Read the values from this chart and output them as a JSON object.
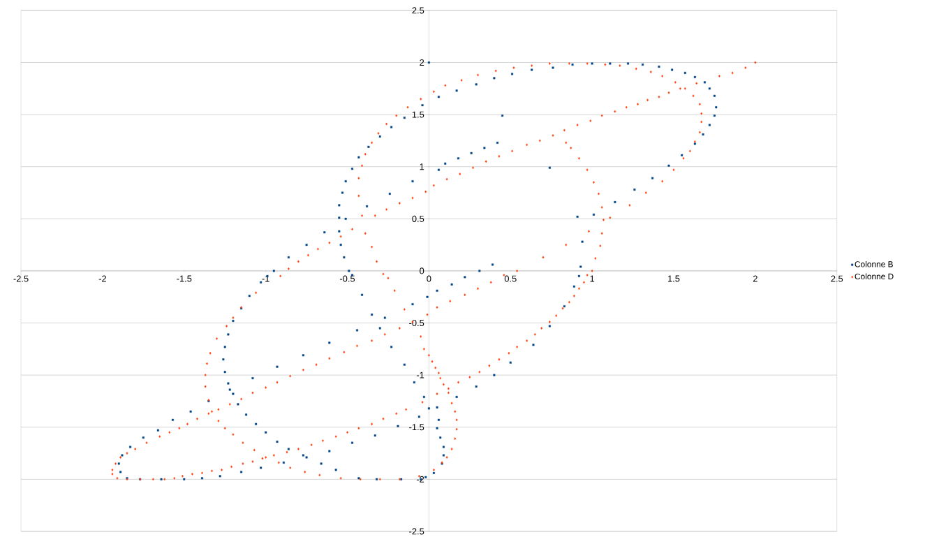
{
  "chart_data": {
    "type": "scatter",
    "xlim": [
      -2.5,
      2.5
    ],
    "ylim": [
      -2.5,
      2.5
    ],
    "xticks": [
      -2.5,
      -2,
      -1.5,
      -1,
      -0.5,
      0,
      0.5,
      1,
      1.5,
      2,
      2.5
    ],
    "yticks": [
      -2.5,
      -2,
      -1.5,
      -1,
      -0.5,
      0,
      0.5,
      1,
      1.5,
      2,
      2.5
    ],
    "grid": "y",
    "legend": "right",
    "series": [
      {
        "name": "Colonne B",
        "color": "#004586",
        "marker": "square",
        "x": [
          0,
          0.45,
          0.74,
          0.91,
          0.94,
          0.92,
          0.93,
          0.89,
          0.83,
          0.74,
          0.64,
          0.5,
          0.4,
          0.29,
          0.17,
          0.05,
          -0.06,
          -0.19,
          -0.33,
          -0.47,
          -0.61,
          -0.75,
          -0.89,
          -1.03,
          -1.15,
          -1.28,
          -1.39,
          -1.5,
          -1.64,
          -1.77,
          -1.85,
          -1.89,
          -1.9,
          -1.88,
          -1.83,
          -1.75,
          -1.66,
          -1.57,
          -1.46,
          -1.35,
          -1.22,
          -1.08,
          -0.93,
          -0.77,
          -0.61,
          -0.44,
          -0.27,
          -0.1,
          -0.01,
          0.05,
          0.14,
          0.22,
          0.31,
          0.39,
          1.01,
          1.14,
          1.26,
          1.37,
          1.47,
          1.55,
          1.63,
          1.68,
          1.72,
          1.75,
          1.76,
          1.75,
          1.72,
          1.69,
          1.63,
          1.57,
          1.49,
          1.41,
          1.31,
          1.22,
          1.11,
          1,
          0.88,
          0.76,
          0.63,
          0.51,
          0.4,
          0.29,
          0.17,
          0.06,
          -0.04,
          -0.15,
          -0.23,
          -0.3,
          -0.37,
          -0.43,
          -0.47,
          -0.51,
          -0.53,
          -0.55,
          -0.55,
          -0.55,
          -0.54,
          -0.52,
          -0.49,
          -0.47,
          -0.41,
          -0.35,
          -0.3,
          -0.23,
          -0.15,
          -0.09,
          -0.03,
          0,
          0.06,
          0.05,
          0.07,
          0.09,
          0.09,
          0.08,
          0.03,
          -0.02,
          -0.05,
          -0.17,
          -0.32,
          -0.43,
          -0.57,
          -0.66,
          -0.77,
          -0.86,
          -0.93,
          -1,
          -1.06,
          -1.12,
          -1.17,
          -1.2,
          -1.23,
          -1.25,
          -1.26,
          -1.25,
          -1.23,
          -1.2,
          -1.15,
          -1.1,
          -1.03,
          -0.99,
          -0.95,
          -0.86,
          -0.75,
          -0.64,
          -0.51,
          -0.38,
          -0.24,
          -0.1,
          0.06,
          0.1,
          0.18,
          0.26,
          0.34,
          0.42
        ],
        "values": [
          2,
          1.49,
          0.99,
          0.52,
          0.28,
          -0.05,
          0.04,
          -0.15,
          -0.34,
          -0.53,
          -0.71,
          -0.88,
          -1,
          -1.11,
          -1.21,
          -1.31,
          -1.4,
          -1.49,
          -1.58,
          -1.65,
          -1.73,
          -1.79,
          -1.84,
          -1.89,
          -1.93,
          -1.97,
          -1.99,
          -2,
          -2,
          -2,
          -1.99,
          -1.93,
          -1.85,
          -1.77,
          -1.69,
          -1.6,
          -1.53,
          -1.43,
          -1.35,
          -1.25,
          -1.14,
          -1.03,
          -0.92,
          -0.81,
          -0.69,
          -0.57,
          -0.45,
          -0.32,
          -0.25,
          -0.19,
          -0.13,
          -0.06,
          0,
          0.06,
          0.54,
          0.66,
          0.78,
          0.89,
          1.01,
          1.11,
          1.22,
          1.31,
          1.4,
          1.49,
          1.57,
          1.68,
          1.75,
          1.81,
          1.86,
          1.9,
          1.93,
          1.96,
          1.98,
          1.99,
          1.99,
          1.99,
          1.98,
          1.95,
          1.93,
          1.89,
          1.85,
          1.79,
          1.73,
          1.67,
          1.59,
          1.47,
          1.38,
          1.29,
          1.19,
          1.09,
          0.98,
          0.86,
          0.75,
          0.63,
          0.51,
          0.38,
          0.25,
          0.13,
          0,
          -0.04,
          -0.23,
          -0.42,
          -0.55,
          -0.73,
          -0.9,
          -1.07,
          -1.21,
          -1.32,
          -1.43,
          -1.51,
          -1.6,
          -1.69,
          -1.77,
          -1.85,
          -1.94,
          -1.98,
          -2,
          -2,
          -2,
          -1.99,
          -1.91,
          -1.85,
          -1.77,
          -1.71,
          -1.64,
          -1.55,
          -1.47,
          -1.38,
          -1.28,
          -1.18,
          -1.08,
          -0.97,
          -0.85,
          -0.73,
          -0.61,
          -0.48,
          -0.36,
          -0.24,
          -0.11,
          -0.05,
          0,
          0.13,
          0.25,
          0.37,
          0.5,
          0.62,
          0.74,
          0.86,
          0.97,
          1.03,
          1.08,
          1.13,
          1.18,
          1.23
        ]
      },
      {
        "name": "Colonne D",
        "color": "#ff420e",
        "marker": "diamond",
        "x": [
          2,
          1.94,
          1.86,
          1.78,
          1.64,
          1.54,
          1.47,
          1.41,
          1.34,
          1.28,
          1.21,
          1.14,
          1.06,
          0.99,
          0.91,
          0.83,
          0.76,
          0.68,
          0.6,
          0.51,
          0.43,
          0.35,
          0.27,
          0.19,
          0.11,
          0.03,
          -0.02,
          -0.1,
          -0.18,
          -0.26,
          -0.33,
          -0.47,
          -0.54,
          -0.61,
          -0.68,
          -0.74,
          -0.8,
          -0.86,
          -0.91,
          -1.06,
          -1.15,
          -1.2,
          -1.24,
          -1.3,
          -1.34,
          -1.36,
          -1.37,
          -1.37,
          -1.35,
          -1.33,
          -1.29,
          -1.25,
          -1.2,
          -1.14,
          -1.07,
          -1,
          -0.92,
          -0.85,
          -0.76,
          -0.67,
          -0.54,
          -0.42,
          -0.3,
          -0.18,
          -0.06,
          0.03,
          0.08,
          0.11,
          0.14,
          0.16,
          0.17,
          0.17,
          0.16,
          0.14,
          0.12,
          0.09,
          0.07,
          0.06,
          0.04,
          0.02,
          0,
          -0.03,
          -0.05,
          -0.1,
          -0.15,
          -0.21,
          -0.25,
          -0.28,
          -0.32,
          -0.35,
          -0.39,
          -0.41,
          -0.43,
          -0.43,
          -0.41,
          -0.39,
          -0.35,
          -0.31,
          -0.26,
          -0.2,
          -0.13,
          -0.05,
          0.03,
          0.1,
          0.2,
          0.3,
          0.41,
          0.52,
          0.63,
          0.74,
          0.86,
          0.97,
          1.08,
          1.17,
          1.27,
          1.36,
          1.43,
          1.51,
          1.57,
          1.62,
          1.66,
          1.67,
          1.67,
          1.66,
          1.63,
          1.6,
          1.56,
          1.5,
          1.43,
          1.33,
          1.23,
          1.11,
          0.98,
          0.84,
          0.7,
          0.54,
          0.84,
          0.87,
          0.92,
          0.97,
          1.01,
          1.04,
          1.06,
          1.07,
          1.06,
          1.05,
          1.02,
          1,
          0.97,
          0.95,
          0.92,
          0.89,
          0.86,
          0.82,
          0.78,
          0.74,
          0.69,
          0.65,
          0.6,
          0.54,
          0.49,
          0.43,
          0.37,
          0.31,
          0.25,
          0.18,
          0.12,
          0.05,
          -0.04,
          -0.14,
          -0.2,
          -0.28,
          -0.35,
          -0.43,
          -0.5,
          -0.57,
          -0.65,
          -0.72,
          -0.8,
          -0.87,
          -0.95,
          -1.02,
          -1.08,
          -1.14,
          -1.21,
          -1.27,
          -1.33,
          -1.39,
          -1.45,
          -1.51,
          -1.56,
          -1.62,
          -1.69,
          -1.77,
          -1.85,
          -1.91,
          -1.94,
          -1.94,
          -1.92,
          -1.89,
          -1.85,
          -1.8,
          -1.73,
          -1.65,
          -1.59,
          -1.53,
          -1.48,
          -1.42,
          -1.35,
          -1.29,
          -1.22,
          -1.15,
          -1.08,
          -1,
          -0.93,
          -0.85,
          -0.77,
          -0.69,
          -0.61,
          -0.52,
          -0.44,
          -0.35,
          -0.27,
          -0.18,
          -0.01,
          0.05,
          0.13,
          0.22,
          0.3,
          0.38,
          0.46
        ],
        "values": [
          2,
          1.95,
          1.9,
          1.87,
          1.8,
          1.75,
          1.71,
          1.67,
          1.64,
          1.6,
          1.57,
          1.53,
          1.49,
          1.44,
          1.4,
          1.35,
          1.3,
          1.25,
          1.21,
          1.15,
          1.1,
          1.05,
          0.99,
          0.93,
          0.88,
          0.82,
          0.76,
          0.7,
          0.65,
          0.59,
          0.53,
          0.4,
          0.33,
          0.27,
          0.21,
          0.15,
          0.09,
          0.02,
          -0.05,
          -0.21,
          -0.35,
          -0.45,
          -0.53,
          -0.65,
          -0.79,
          -0.89,
          -1,
          -1.11,
          -1.24,
          -1.35,
          -1.44,
          -1.51,
          -1.57,
          -1.65,
          -1.72,
          -1.79,
          -1.84,
          -1.89,
          -1.93,
          -1.96,
          -1.99,
          -2,
          -2,
          -2,
          -1.97,
          -1.91,
          -1.84,
          -1.79,
          -1.71,
          -1.61,
          -1.52,
          -1.43,
          -1.35,
          -1.27,
          -1.17,
          -1.09,
          -1.03,
          -0.98,
          -0.93,
          -0.87,
          -0.81,
          -0.75,
          -0.63,
          -0.49,
          -0.37,
          -0.19,
          -0.07,
          -0.03,
          0.09,
          0.23,
          0.36,
          0.53,
          0.72,
          0.89,
          1.01,
          1.12,
          1.23,
          1.32,
          1.41,
          1.49,
          1.57,
          1.65,
          1.72,
          1.78,
          1.83,
          1.88,
          1.92,
          1.95,
          1.97,
          1.99,
          1.99,
          1.99,
          1.98,
          1.97,
          1.94,
          1.91,
          1.87,
          1.81,
          1.75,
          1.68,
          1.6,
          1.51,
          1.43,
          1.33,
          1.24,
          1.15,
          1.08,
          0.97,
          0.86,
          0.75,
          0.63,
          0.51,
          0.38,
          0.25,
          0.13,
          0,
          1.23,
          1.18,
          1.08,
          0.97,
          0.85,
          0.74,
          0.61,
          0.49,
          0.36,
          0.24,
          0.12,
          0,
          -0.04,
          -0.11,
          -0.17,
          -0.24,
          -0.3,
          -0.36,
          -0.43,
          -0.49,
          -0.55,
          -0.61,
          -0.67,
          -0.73,
          -0.79,
          -0.85,
          -0.91,
          -0.97,
          -1.02,
          -1.07,
          -1.13,
          -1.18,
          -1.26,
          -1.33,
          -1.37,
          -1.42,
          -1.47,
          -1.51,
          -1.55,
          -1.59,
          -1.63,
          -1.67,
          -1.71,
          -1.74,
          -1.77,
          -1.8,
          -1.83,
          -1.85,
          -1.88,
          -1.91,
          -1.92,
          -1.94,
          -1.95,
          -1.97,
          -1.99,
          -2,
          -2,
          -2,
          -2,
          -1.99,
          -1.95,
          -1.91,
          -1.85,
          -1.79,
          -1.75,
          -1.71,
          -1.65,
          -1.59,
          -1.55,
          -1.51,
          -1.47,
          -1.42,
          -1.37,
          -1.33,
          -1.28,
          -1.23,
          -1.17,
          -1.12,
          -1.07,
          -1.01,
          -0.95,
          -0.9,
          -0.84,
          -0.78,
          -0.72,
          -0.67,
          -0.61,
          -0.55,
          -0.42,
          -0.35,
          -0.29,
          -0.23,
          -0.17,
          -0.11,
          -0.04
        ]
      }
    ]
  }
}
